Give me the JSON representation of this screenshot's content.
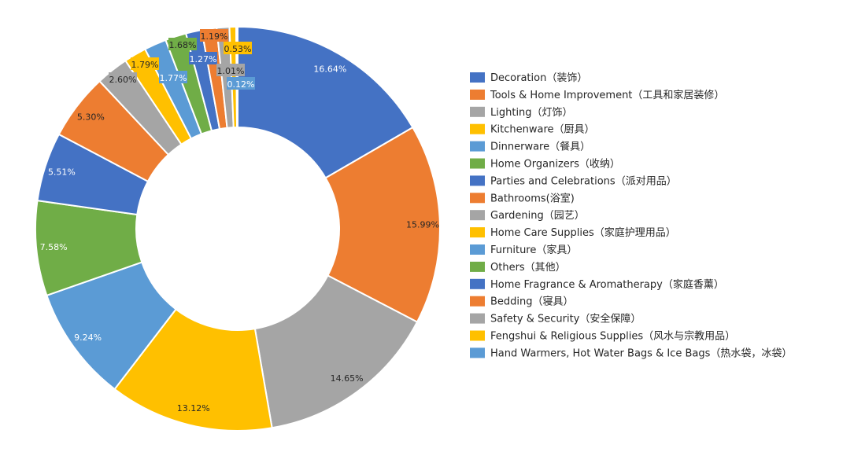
{
  "chart_data": {
    "type": "pie",
    "variant": "donut",
    "title": "",
    "legend_position": "right",
    "slices": [
      {
        "label": "Decoration（装饰）",
        "value": 16.64,
        "value_label": "16.64%",
        "color": "#4472C4",
        "label_color": "#ffffff"
      },
      {
        "label": "Tools & Home Improvement（工具和家居装修）",
        "value": 15.99,
        "value_label": "15.99%",
        "color": "#ED7D31",
        "label_color": "#262626"
      },
      {
        "label": "Lighting（灯饰）",
        "value": 14.65,
        "value_label": "14.65%",
        "color": "#A5A5A5",
        "label_color": "#262626"
      },
      {
        "label": "Kitchenware（厨具）",
        "value": 13.12,
        "value_label": "13.12%",
        "color": "#FFC000",
        "label_color": "#262626"
      },
      {
        "label": "Dinnerware（餐具）",
        "value": 9.24,
        "value_label": "9.24%",
        "color": "#5B9BD5",
        "label_color": "#ffffff"
      },
      {
        "label": "Home Organizers（收纳）",
        "value": 7.58,
        "value_label": "7.58%",
        "color": "#70AD47",
        "label_color": "#ffffff"
      },
      {
        "label": "Parties and Celebrations（派对用品）",
        "value": 5.51,
        "value_label": "5.51%",
        "color": "#4472C4",
        "label_color": "#ffffff"
      },
      {
        "label": "Bathrooms(浴室)",
        "value": 5.3,
        "value_label": "5.30%",
        "color": "#ED7D31",
        "label_color": "#262626"
      },
      {
        "label": "Gardening（园艺）",
        "value": 2.6,
        "value_label": "2.60%",
        "color": "#A5A5A5",
        "label_color": "#262626"
      },
      {
        "label": "Home Care Supplies（家庭护理用品）",
        "value": 1.79,
        "value_label": "1.79%",
        "color": "#FFC000",
        "label_color": "#262626"
      },
      {
        "label": "Furniture（家具）",
        "value": 1.77,
        "value_label": "1.77%",
        "color": "#5B9BD5",
        "label_color": "#262626"
      },
      {
        "label": "Others（其他）",
        "value": 1.68,
        "value_label": "1.68%",
        "color": "#70AD47",
        "label_color": "#262626"
      },
      {
        "label": "Home Fragrance & Aromatherapy（家庭香薰）",
        "value": 1.27,
        "value_label": "1.27%",
        "color": "#4472C4",
        "label_color": "#262626"
      },
      {
        "label": "Bedding（寝具）",
        "value": 1.19,
        "value_label": "1.19%",
        "color": "#ED7D31",
        "label_color": "#262626"
      },
      {
        "label": "Safety & Security（安全保障）",
        "value": 1.01,
        "value_label": "1.01%",
        "color": "#A5A5A5",
        "label_color": "#262626"
      },
      {
        "label": "Fengshui & Religious Supplies（风水与宗教用品）",
        "value": 0.53,
        "value_label": "0.53%",
        "color": "#FFC000",
        "label_color": "#262626"
      },
      {
        "label": "Hand Warmers, Hot Water Bags & Ice Bags（热水袋，冰袋）",
        "value": 0.12,
        "value_label": "0.12%",
        "color": "#5B9BD5",
        "label_color": "#262626"
      }
    ]
  }
}
